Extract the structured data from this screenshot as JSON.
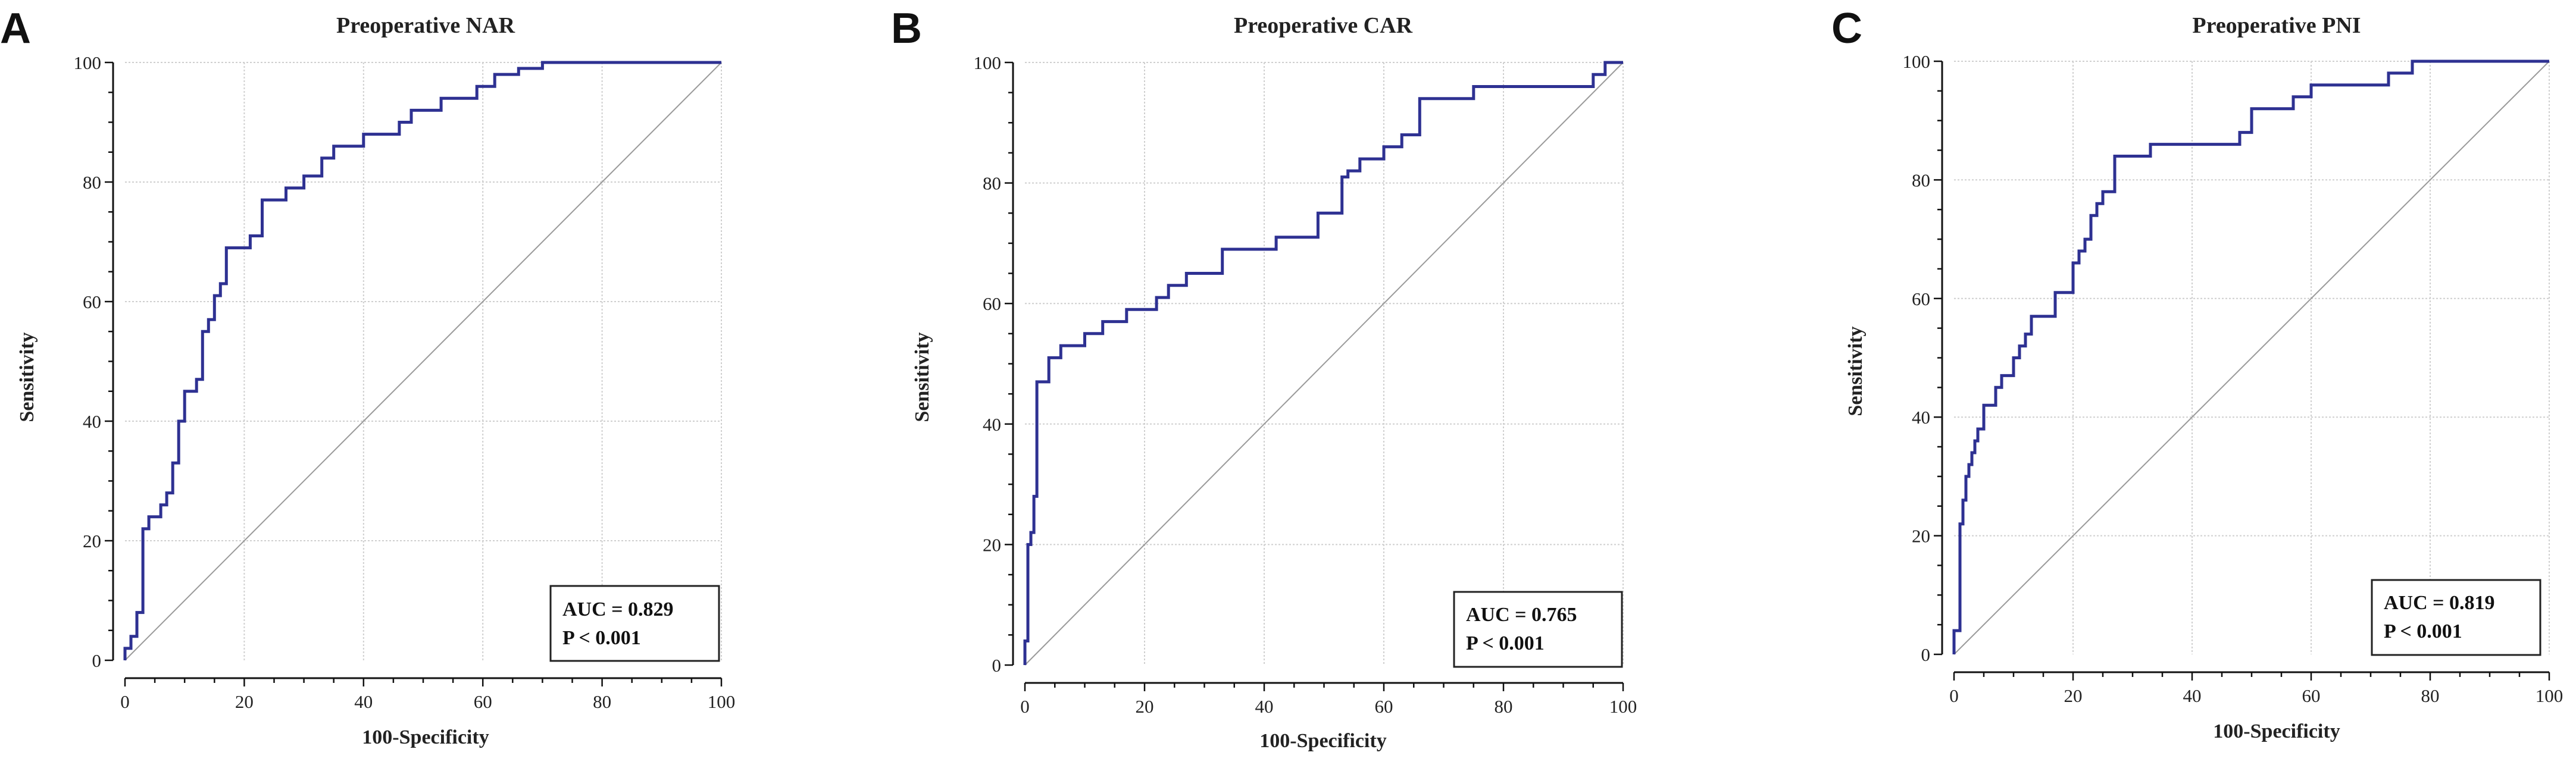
{
  "panels": [
    {
      "letter": "A",
      "title": "Preoperative NAR",
      "auc_text": "AUC = 0.829",
      "p_text": "P < 0.001",
      "xlabel": "100-Specificity",
      "ylabel": "Sensitivity"
    },
    {
      "letter": "B",
      "title": "Preoperative CAR",
      "auc_text": "AUC = 0.765",
      "p_text": "P < 0.001",
      "xlabel": "100-Specificity",
      "ylabel": "Sensitivity"
    },
    {
      "letter": "C",
      "title": "Preoperative PNI",
      "auc_text": "AUC = 0.819",
      "p_text": "P < 0.001",
      "xlabel": "100-Specificity",
      "ylabel": "Sensitivity"
    }
  ],
  "chart_data": [
    {
      "type": "line",
      "title": "Preoperative NAR",
      "xlabel": "100-Specificity",
      "ylabel": "Sensitivity",
      "xlim": [
        0,
        100
      ],
      "ylim": [
        0,
        100
      ],
      "xticks": [
        0,
        20,
        40,
        60,
        80,
        100
      ],
      "yticks": [
        0,
        20,
        40,
        60,
        80,
        100
      ],
      "grid": true,
      "annotation": "AUC = 0.829; P < 0.001",
      "series": [
        {
          "name": "ROC curve",
          "color": "#2e3192",
          "x": [
            0,
            0,
            1,
            1,
            2,
            2,
            3,
            3,
            4,
            4,
            6,
            6,
            7,
            7,
            8,
            8,
            9,
            9,
            10,
            10,
            12,
            12,
            13,
            13,
            14,
            14,
            15,
            15,
            16,
            16,
            17,
            17,
            21,
            21,
            23,
            23,
            27,
            27,
            30,
            30,
            33,
            33,
            35,
            35,
            40,
            40,
            46,
            46,
            48,
            48,
            53,
            53,
            59,
            59,
            62,
            62,
            66,
            66,
            70,
            70,
            100
          ],
          "y": [
            0,
            2,
            2,
            4,
            4,
            8,
            8,
            22,
            22,
            24,
            24,
            26,
            26,
            28,
            28,
            33,
            33,
            40,
            40,
            45,
            45,
            47,
            47,
            55,
            55,
            57,
            57,
            61,
            61,
            63,
            63,
            69,
            69,
            71,
            71,
            77,
            77,
            79,
            79,
            81,
            81,
            84,
            84,
            86,
            86,
            88,
            88,
            90,
            90,
            92,
            92,
            94,
            94,
            96,
            96,
            98,
            98,
            99,
            99,
            100,
            100
          ]
        },
        {
          "name": "Reference line",
          "color": "#9a9a9a",
          "x": [
            0,
            100
          ],
          "y": [
            0,
            100
          ]
        }
      ]
    },
    {
      "type": "line",
      "title": "Preoperative CAR",
      "xlabel": "100-Specificity",
      "ylabel": "Sensitivity",
      "xlim": [
        0,
        100
      ],
      "ylim": [
        0,
        100
      ],
      "xticks": [
        0,
        20,
        40,
        60,
        80,
        100
      ],
      "yticks": [
        0,
        20,
        40,
        60,
        80,
        100
      ],
      "grid": true,
      "annotation": "AUC = 0.765; P < 0.001",
      "series": [
        {
          "name": "ROC curve",
          "color": "#2e3192",
          "x": [
            0,
            0,
            0.5,
            0.5,
            1,
            1,
            1.5,
            1.5,
            2,
            2,
            4,
            4,
            6,
            6,
            10,
            10,
            13,
            13,
            17,
            17,
            22,
            22,
            24,
            24,
            27,
            27,
            33,
            33,
            42,
            42,
            49,
            49,
            53,
            53,
            54,
            54,
            56,
            56,
            60,
            60,
            63,
            63,
            66,
            66,
            75,
            75,
            95,
            95,
            97,
            97,
            100
          ],
          "y": [
            0,
            4,
            4,
            20,
            20,
            22,
            22,
            28,
            28,
            47,
            47,
            51,
            51,
            53,
            53,
            55,
            55,
            57,
            57,
            59,
            59,
            61,
            61,
            63,
            63,
            65,
            65,
            69,
            69,
            71,
            71,
            75,
            75,
            81,
            81,
            82,
            82,
            84,
            84,
            86,
            86,
            88,
            88,
            94,
            94,
            96,
            96,
            98,
            98,
            100,
            100
          ]
        },
        {
          "name": "Reference line",
          "color": "#9a9a9a",
          "x": [
            0,
            100
          ],
          "y": [
            0,
            100
          ]
        }
      ]
    },
    {
      "type": "line",
      "title": "Preoperative PNI",
      "xlabel": "100-Specificity",
      "ylabel": "Sensitivity",
      "xlim": [
        0,
        100
      ],
      "ylim": [
        0,
        100
      ],
      "xticks": [
        0,
        20,
        40,
        60,
        80,
        100
      ],
      "yticks": [
        0,
        20,
        40,
        60,
        80,
        100
      ],
      "grid": true,
      "annotation": "AUC = 0.819; P < 0.001",
      "series": [
        {
          "name": "ROC curve",
          "color": "#2e3192",
          "x": [
            0,
            0,
            1,
            1,
            1.5,
            1.5,
            2,
            2,
            2.5,
            2.5,
            3,
            3,
            3.5,
            3.5,
            4,
            4,
            5,
            5,
            7,
            7,
            8,
            8,
            10,
            10,
            11,
            11,
            12,
            12,
            13,
            13,
            17,
            17,
            20,
            20,
            21,
            21,
            22,
            22,
            23,
            23,
            24,
            24,
            25,
            25,
            27,
            27,
            33,
            33,
            48,
            48,
            50,
            50,
            57,
            57,
            60,
            60,
            62,
            62,
            73,
            73,
            77,
            77,
            100
          ],
          "y": [
            0,
            4,
            4,
            22,
            22,
            26,
            26,
            30,
            30,
            32,
            32,
            34,
            34,
            36,
            36,
            38,
            38,
            42,
            42,
            45,
            45,
            47,
            47,
            50,
            50,
            52,
            52,
            54,
            54,
            57,
            57,
            61,
            61,
            66,
            66,
            68,
            68,
            70,
            70,
            74,
            74,
            76,
            76,
            78,
            78,
            84,
            84,
            86,
            86,
            88,
            88,
            92,
            92,
            94,
            94,
            96,
            96,
            96,
            96,
            98,
            98,
            100,
            100
          ]
        },
        {
          "name": "Reference line",
          "color": "#9a9a9a",
          "x": [
            0,
            100
          ],
          "y": [
            0,
            100
          ]
        }
      ]
    }
  ]
}
